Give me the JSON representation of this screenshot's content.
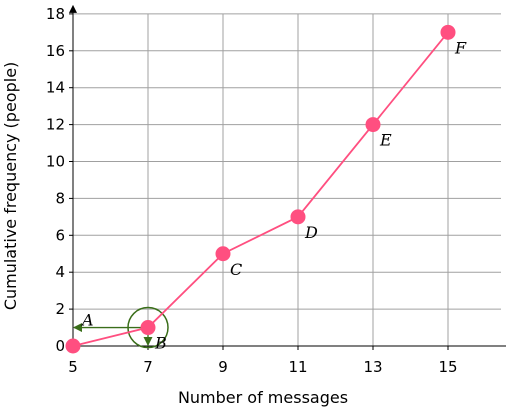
{
  "chart_data": {
    "type": "line",
    "xlabel": "Number of messages",
    "ylabel": "Cumulative frequency (people)",
    "x_axis_variable": "m",
    "xlim": [
      5,
      16.2
    ],
    "ylim": [
      0,
      18
    ],
    "x_ticks": [
      5,
      7,
      9,
      11,
      13,
      15
    ],
    "y_ticks": [
      0,
      2,
      4,
      6,
      8,
      10,
      12,
      14,
      16,
      18
    ],
    "x_tick_labels": [
      "5",
      "7",
      "9",
      "11",
      "13",
      "15"
    ],
    "y_tick_labels": [
      "0",
      "2",
      "4",
      "6",
      "8",
      "10",
      "12",
      "14",
      "16",
      "18"
    ],
    "grid": true,
    "line_color": "#ff4f80",
    "annotation_color": "#3a6e1a",
    "series": [
      {
        "points": [
          {
            "x": 5,
            "y": 0,
            "label": ""
          },
          {
            "x": 7,
            "y": 1,
            "label": "B"
          },
          {
            "x": 9,
            "y": 5,
            "label": "C"
          },
          {
            "x": 11,
            "y": 7,
            "label": "D"
          },
          {
            "x": 13,
            "y": 12,
            "label": "E"
          },
          {
            "x": 15,
            "y": 17,
            "label": "F"
          }
        ]
      }
    ],
    "annotations": [
      {
        "type": "circle",
        "x": 7,
        "y": 1
      },
      {
        "type": "arrow-to-x-axis",
        "x": 7,
        "y": 1
      },
      {
        "type": "arrow-to-y-axis",
        "x": 7,
        "y": 1,
        "label": "A"
      }
    ]
  }
}
